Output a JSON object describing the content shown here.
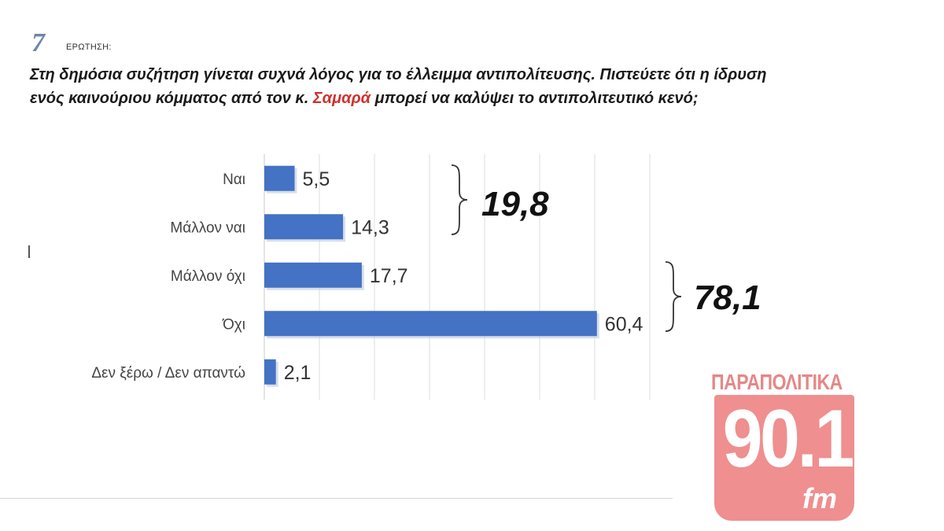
{
  "question": {
    "number": "7",
    "label": "ΕΡΩΤΗΣΗ:",
    "text_before": "Στη δημόσια συζήτηση γίνεται συχνά λόγος για το έλλειμμα αντιπολίτευσης. Πιστεύετε ότι η ίδρυση ενός καινούριου κόμματος από τον κ. ",
    "highlight": "Σαμαρά",
    "text_after": " μπορεί να καλύψει το αντιπολιτευτικό κενό;",
    "highlight_color": "#d0312d"
  },
  "chart_data": {
    "type": "bar",
    "orientation": "horizontal",
    "categories": [
      "Ναι",
      "Μάλλον ναι",
      "Μάλλον όχι",
      "Όχι",
      "Δεν ξέρω / Δεν απαντώ"
    ],
    "values": [
      5.5,
      14.3,
      17.7,
      60.4,
      2.1
    ],
    "value_labels": [
      "5,5",
      "14,3",
      "17,7",
      "60,4",
      "2,1"
    ],
    "xlim": [
      0,
      70
    ],
    "grid": true,
    "bar_color": "#4472c4",
    "group_totals": [
      {
        "label": "19,8",
        "categories": [
          "Ναι",
          "Μάλλον ναι"
        ]
      },
      {
        "label": "78,1",
        "categories": [
          "Μάλλον όχι",
          "Όχι"
        ]
      }
    ]
  },
  "logo": {
    "top_text": "ΠΑΡΑΠΟΛΙΤΙΚΑ",
    "number": "90.1",
    "suffix": "fm",
    "color": "#ef8f8f"
  }
}
